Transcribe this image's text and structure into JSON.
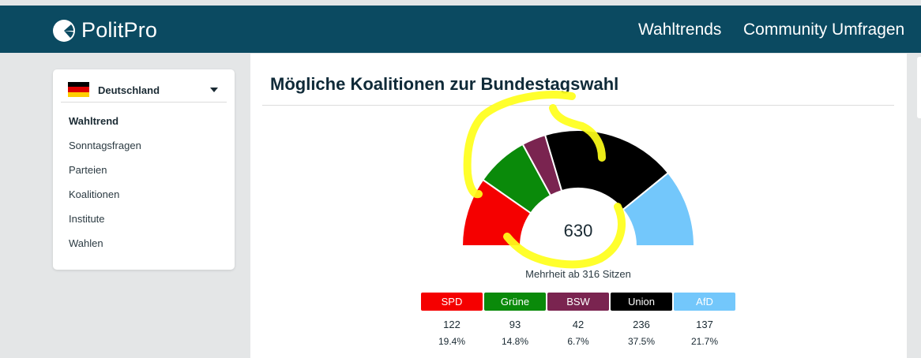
{
  "header": {
    "logo_text": "PolitPro",
    "nav": [
      "Wahltrends",
      "Community Umfragen"
    ]
  },
  "sidebar": {
    "country": "Deutschland",
    "items": [
      {
        "label": "Wahltrend",
        "active": true
      },
      {
        "label": "Sonntagsfragen",
        "active": false
      },
      {
        "label": "Parteien",
        "active": false
      },
      {
        "label": "Koalitionen",
        "active": false
      },
      {
        "label": "Institute",
        "active": false
      },
      {
        "label": "Wahlen",
        "active": false
      }
    ]
  },
  "main": {
    "title": "Mögliche Koalitionen zur Bundestagswahl",
    "total_seats": "630",
    "majority_text": "Mehrheit ab 316 Sitzen"
  },
  "parties": [
    {
      "name": "SPD",
      "seats": "122",
      "share": "19.4%",
      "color": "#f50000"
    },
    {
      "name": "Grüne",
      "seats": "93",
      "share": "14.8%",
      "color": "#0a8a0a"
    },
    {
      "name": "BSW",
      "seats": "42",
      "share": "6.7%",
      "color": "#7a2450"
    },
    {
      "name": "Union",
      "seats": "236",
      "share": "37.5%",
      "color": "#000000"
    },
    {
      "name": "AfD",
      "seats": "137",
      "share": "21.7%",
      "color": "#73c7fb"
    }
  ],
  "colors": {
    "header_bg": "#0b4a61",
    "page_bg": "#e4e6e7",
    "highlight": "#ffff1a"
  }
}
